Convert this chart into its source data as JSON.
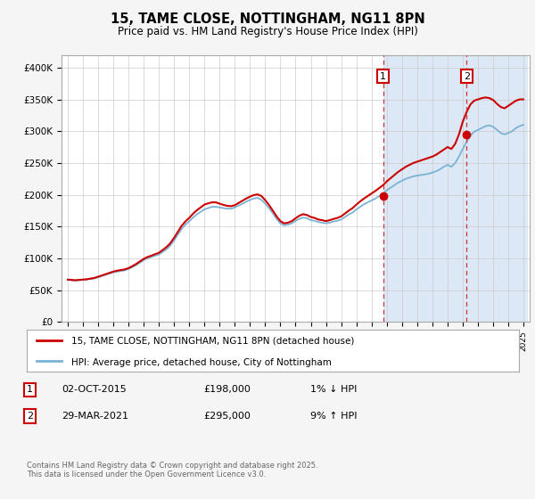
{
  "title": "15, TAME CLOSE, NOTTINGHAM, NG11 8PN",
  "subtitle": "Price paid vs. HM Land Registry's House Price Index (HPI)",
  "bg_color": "#f5f5f5",
  "plot_bg_color": "#ffffff",
  "grid_color": "#cccccc",
  "hpi_line_color": "#7ab3d4",
  "price_line_color": "#cc0000",
  "highlight_bg": "#dce8f5",
  "ylim": [
    0,
    420000
  ],
  "yticks": [
    0,
    50000,
    100000,
    150000,
    200000,
    250000,
    300000,
    350000,
    400000
  ],
  "ytick_labels": [
    "£0",
    "£50K",
    "£100K",
    "£150K",
    "£200K",
    "£250K",
    "£300K",
    "£350K",
    "£400K"
  ],
  "marker1_date": 2015.75,
  "marker1_price": 198000,
  "marker2_date": 2021.25,
  "marker2_price": 295000,
  "marker_box_color1": "#cc0000",
  "marker_box_color2": "#cc0000",
  "dashed_color": "#cc3333",
  "legend_line1": "15, TAME CLOSE, NOTTINGHAM, NG11 8PN (detached house)",
  "legend_line2": "HPI: Average price, detached house, City of Nottingham",
  "table_row1": [
    "1",
    "02-OCT-2015",
    "£198,000",
    "1% ↓ HPI"
  ],
  "table_row2": [
    "2",
    "29-MAR-2021",
    "£295,000",
    "9% ↑ HPI"
  ],
  "footer": "Contains HM Land Registry data © Crown copyright and database right 2025.\nThis data is licensed under the Open Government Licence v3.0.",
  "hpi_years": [
    1995.0,
    1995.25,
    1995.5,
    1995.75,
    1996.0,
    1996.25,
    1996.5,
    1996.75,
    1997.0,
    1997.25,
    1997.5,
    1997.75,
    1998.0,
    1998.25,
    1998.5,
    1998.75,
    1999.0,
    1999.25,
    1999.5,
    1999.75,
    2000.0,
    2000.25,
    2000.5,
    2000.75,
    2001.0,
    2001.25,
    2001.5,
    2001.75,
    2002.0,
    2002.25,
    2002.5,
    2002.75,
    2003.0,
    2003.25,
    2003.5,
    2003.75,
    2004.0,
    2004.25,
    2004.5,
    2004.75,
    2005.0,
    2005.25,
    2005.5,
    2005.75,
    2006.0,
    2006.25,
    2006.5,
    2006.75,
    2007.0,
    2007.25,
    2007.5,
    2007.75,
    2008.0,
    2008.25,
    2008.5,
    2008.75,
    2009.0,
    2009.25,
    2009.5,
    2009.75,
    2010.0,
    2010.25,
    2010.5,
    2010.75,
    2011.0,
    2011.25,
    2011.5,
    2011.75,
    2012.0,
    2012.25,
    2012.5,
    2012.75,
    2013.0,
    2013.25,
    2013.5,
    2013.75,
    2014.0,
    2014.25,
    2014.5,
    2014.75,
    2015.0,
    2015.25,
    2015.5,
    2015.75,
    2016.0,
    2016.25,
    2016.5,
    2016.75,
    2017.0,
    2017.25,
    2017.5,
    2017.75,
    2018.0,
    2018.25,
    2018.5,
    2018.75,
    2019.0,
    2019.25,
    2019.5,
    2019.75,
    2020.0,
    2020.25,
    2020.5,
    2020.75,
    2021.0,
    2021.25,
    2021.5,
    2021.75,
    2022.0,
    2022.25,
    2022.5,
    2022.75,
    2023.0,
    2023.25,
    2023.5,
    2023.75,
    2024.0,
    2024.25,
    2024.5,
    2024.75,
    2025.0
  ],
  "hpi_vals": [
    66000,
    65500,
    65000,
    65500,
    66000,
    66500,
    67500,
    68500,
    70000,
    72000,
    74000,
    76000,
    78000,
    79000,
    80000,
    81000,
    83000,
    86000,
    89000,
    93000,
    97000,
    100000,
    102000,
    104000,
    106000,
    110000,
    114000,
    120000,
    128000,
    137000,
    146000,
    153000,
    158000,
    164000,
    169000,
    173000,
    177000,
    179000,
    181000,
    181000,
    180000,
    179000,
    178000,
    178000,
    180000,
    183000,
    186000,
    189000,
    192000,
    194000,
    195000,
    192000,
    186000,
    179000,
    171000,
    162000,
    155000,
    152000,
    153000,
    155000,
    159000,
    162000,
    164000,
    163000,
    160000,
    159000,
    157000,
    156000,
    155000,
    156000,
    158000,
    159000,
    161000,
    165000,
    169000,
    172000,
    177000,
    181000,
    185000,
    188000,
    191000,
    194000,
    198000,
    202000,
    207000,
    211000,
    215000,
    219000,
    222000,
    225000,
    227000,
    229000,
    230000,
    231000,
    232000,
    233000,
    235000,
    237000,
    240000,
    244000,
    247000,
    244000,
    250000,
    260000,
    272000,
    283000,
    293000,
    299000,
    302000,
    305000,
    308000,
    309000,
    307000,
    302000,
    297000,
    295000,
    297000,
    300000,
    305000,
    308000,
    310000
  ],
  "price_years": [
    1995.0,
    1995.25,
    1995.5,
    1995.75,
    1996.0,
    1996.25,
    1996.5,
    1996.75,
    1997.0,
    1997.25,
    1997.5,
    1997.75,
    1998.0,
    1998.25,
    1998.5,
    1998.75,
    1999.0,
    1999.25,
    1999.5,
    1999.75,
    2000.0,
    2000.25,
    2000.5,
    2000.75,
    2001.0,
    2001.25,
    2001.5,
    2001.75,
    2002.0,
    2002.25,
    2002.5,
    2002.75,
    2003.0,
    2003.25,
    2003.5,
    2003.75,
    2004.0,
    2004.25,
    2004.5,
    2004.75,
    2005.0,
    2005.25,
    2005.5,
    2005.75,
    2006.0,
    2006.25,
    2006.5,
    2006.75,
    2007.0,
    2007.25,
    2007.5,
    2007.75,
    2008.0,
    2008.25,
    2008.5,
    2008.75,
    2009.0,
    2009.25,
    2009.5,
    2009.75,
    2010.0,
    2010.25,
    2010.5,
    2010.75,
    2011.0,
    2011.25,
    2011.5,
    2011.75,
    2012.0,
    2012.25,
    2012.5,
    2012.75,
    2013.0,
    2013.25,
    2013.5,
    2013.75,
    2014.0,
    2014.25,
    2014.5,
    2014.75,
    2015.0,
    2015.25,
    2015.5,
    2015.75,
    2016.0,
    2016.25,
    2016.5,
    2016.75,
    2017.0,
    2017.25,
    2017.5,
    2017.75,
    2018.0,
    2018.25,
    2018.5,
    2018.75,
    2019.0,
    2019.25,
    2019.5,
    2019.75,
    2020.0,
    2020.25,
    2020.5,
    2020.75,
    2021.0,
    2021.25,
    2021.5,
    2021.75,
    2022.0,
    2022.25,
    2022.5,
    2022.75,
    2023.0,
    2023.25,
    2023.5,
    2023.75,
    2024.0,
    2024.25,
    2024.5,
    2024.75,
    2025.0
  ],
  "price_vals": [
    66500,
    66000,
    65500,
    66000,
    66500,
    67000,
    68000,
    69000,
    71000,
    73000,
    75000,
    77000,
    79000,
    80500,
    81500,
    82500,
    84500,
    87500,
    91000,
    95000,
    99000,
    102000,
    104000,
    106500,
    108500,
    113000,
    117500,
    123500,
    132000,
    141500,
    151000,
    158000,
    163500,
    170000,
    175500,
    180000,
    184500,
    186500,
    188000,
    188000,
    186000,
    184000,
    182500,
    182000,
    183500,
    187000,
    190500,
    194000,
    197000,
    199500,
    200500,
    198000,
    191500,
    184000,
    175000,
    166000,
    158500,
    155000,
    156000,
    158500,
    163000,
    167000,
    169500,
    168000,
    165000,
    163500,
    161000,
    160000,
    158500,
    160000,
    162000,
    163500,
    166000,
    170500,
    175000,
    179000,
    184500,
    189500,
    194000,
    198000,
    202000,
    206000,
    210500,
    215000,
    221000,
    226000,
    231000,
    236000,
    240000,
    244000,
    247000,
    250000,
    252000,
    254000,
    256000,
    258000,
    260000,
    263000,
    267000,
    271000,
    275000,
    272000,
    280000,
    295000,
    315000,
    330000,
    342000,
    348000,
    350000,
    352000,
    353000,
    352000,
    349000,
    343000,
    338000,
    336000,
    340000,
    344000,
    348000,
    350000,
    350000
  ]
}
